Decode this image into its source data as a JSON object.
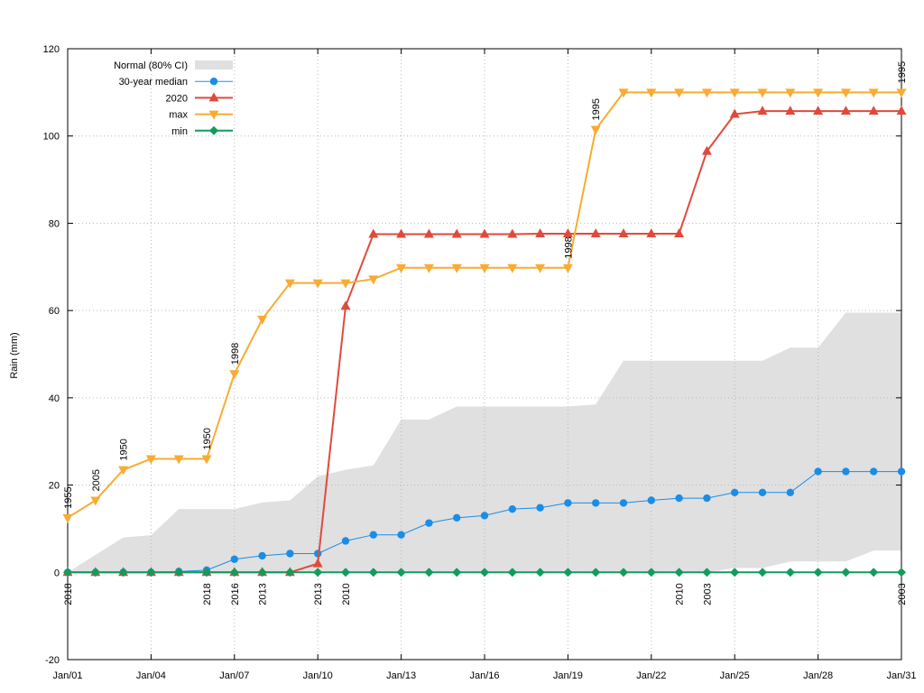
{
  "chart_data": {
    "type": "line",
    "title": "",
    "xlabel": "",
    "ylabel": "Rain (mm)",
    "xlim": [
      1,
      31
    ],
    "ylim": [
      -20,
      120
    ],
    "y_ticks": [
      -20,
      0,
      20,
      40,
      60,
      80,
      100,
      120
    ],
    "x_ticks": [
      {
        "day": 1,
        "label": "Jan/01"
      },
      {
        "day": 4,
        "label": "Jan/04"
      },
      {
        "day": 7,
        "label": "Jan/07"
      },
      {
        "day": 10,
        "label": "Jan/10"
      },
      {
        "day": 13,
        "label": "Jan/13"
      },
      {
        "day": 16,
        "label": "Jan/16"
      },
      {
        "day": 19,
        "label": "Jan/19"
      },
      {
        "day": 22,
        "label": "Jan/22"
      },
      {
        "day": 25,
        "label": "Jan/25"
      },
      {
        "day": 28,
        "label": "Jan/28"
      },
      {
        "day": 31,
        "label": "Jan/31"
      }
    ],
    "grid": true,
    "legend_position": "top-left",
    "x": [
      1,
      2,
      3,
      4,
      5,
      6,
      7,
      8,
      9,
      10,
      11,
      12,
      13,
      14,
      15,
      16,
      17,
      18,
      19,
      20,
      21,
      22,
      23,
      24,
      25,
      26,
      27,
      28,
      29,
      30,
      31
    ],
    "band": {
      "name": "Normal (80% CI)",
      "color": "#e0e0e0",
      "lower": [
        0,
        0,
        0,
        0,
        0,
        0,
        0,
        0,
        0,
        0,
        0,
        0,
        0,
        0,
        0,
        0,
        0,
        0,
        0,
        0,
        0,
        0,
        0,
        0,
        1,
        1,
        2.5,
        2.5,
        2.5,
        5,
        5
      ],
      "upper": [
        0,
        4,
        8,
        8.5,
        14.5,
        14.5,
        14.5,
        16,
        16.5,
        22,
        23.5,
        24.5,
        35,
        35,
        38,
        38,
        38,
        38,
        38,
        38.5,
        48.5,
        48.5,
        48.5,
        48.5,
        48.5,
        48.5,
        51.5,
        51.5,
        59.5,
        59.5,
        59.5
      ]
    },
    "series": [
      {
        "name": "30-year median",
        "color": "#1a8de6",
        "marker": "circle",
        "values": [
          0,
          0,
          0,
          0,
          0.2,
          0.5,
          3,
          3.8,
          4.3,
          4.3,
          7.2,
          8.6,
          8.6,
          11.3,
          12.5,
          13,
          14.5,
          14.8,
          15.9,
          15.9,
          15.9,
          16.5,
          17,
          17,
          18.3,
          18.3,
          18.3,
          23.1,
          23.1,
          23.1,
          23.1
        ]
      },
      {
        "name": "2020",
        "color": "#e04a3c",
        "marker": "triangle-up",
        "values": [
          0,
          0,
          0,
          0,
          0,
          0,
          0,
          0,
          0,
          2,
          61,
          77.5,
          77.5,
          77.5,
          77.5,
          77.5,
          77.5,
          77.6,
          77.6,
          77.6,
          77.6,
          77.6,
          77.6,
          96.5,
          105,
          105.7,
          105.7,
          105.7,
          105.7,
          105.7,
          105.7
        ]
      },
      {
        "name": "max",
        "color": "#f9ab33",
        "marker": "triangle-down",
        "values": [
          12.5,
          16.5,
          23.5,
          26,
          26,
          26,
          45.5,
          58,
          66.3,
          66.3,
          66.3,
          67.2,
          69.8,
          69.8,
          69.8,
          69.8,
          69.8,
          69.8,
          69.8,
          101.5,
          110,
          110,
          110,
          110,
          110,
          110,
          110,
          110,
          110,
          110,
          110
        ]
      },
      {
        "name": "min",
        "color": "#0f9d5a",
        "marker": "diamond",
        "values": [
          0,
          0,
          0,
          0,
          0,
          0,
          0,
          0,
          0,
          0,
          0,
          0,
          0,
          0,
          0,
          0,
          0,
          0,
          0,
          0,
          0,
          0,
          0,
          0,
          0,
          0,
          0,
          0,
          0,
          0,
          0
        ]
      }
    ],
    "annotations_max": [
      {
        "day": 1,
        "label": "1955"
      },
      {
        "day": 2,
        "label": "2005"
      },
      {
        "day": 3,
        "label": "1950"
      },
      {
        "day": 6,
        "label": "1950"
      },
      {
        "day": 7,
        "label": "1998"
      },
      {
        "day": 19,
        "label": "1998"
      },
      {
        "day": 20,
        "label": "1995"
      },
      {
        "day": 31,
        "label": "1995"
      }
    ],
    "annotations_min": [
      {
        "day": 1,
        "label": "2018"
      },
      {
        "day": 6,
        "label": "2018"
      },
      {
        "day": 7,
        "label": "2016"
      },
      {
        "day": 8,
        "label": "2013"
      },
      {
        "day": 10,
        "label": "2013"
      },
      {
        "day": 11,
        "label": "2010"
      },
      {
        "day": 23,
        "label": "2010"
      },
      {
        "day": 24,
        "label": "2003"
      },
      {
        "day": 31,
        "label": "2003"
      }
    ]
  }
}
